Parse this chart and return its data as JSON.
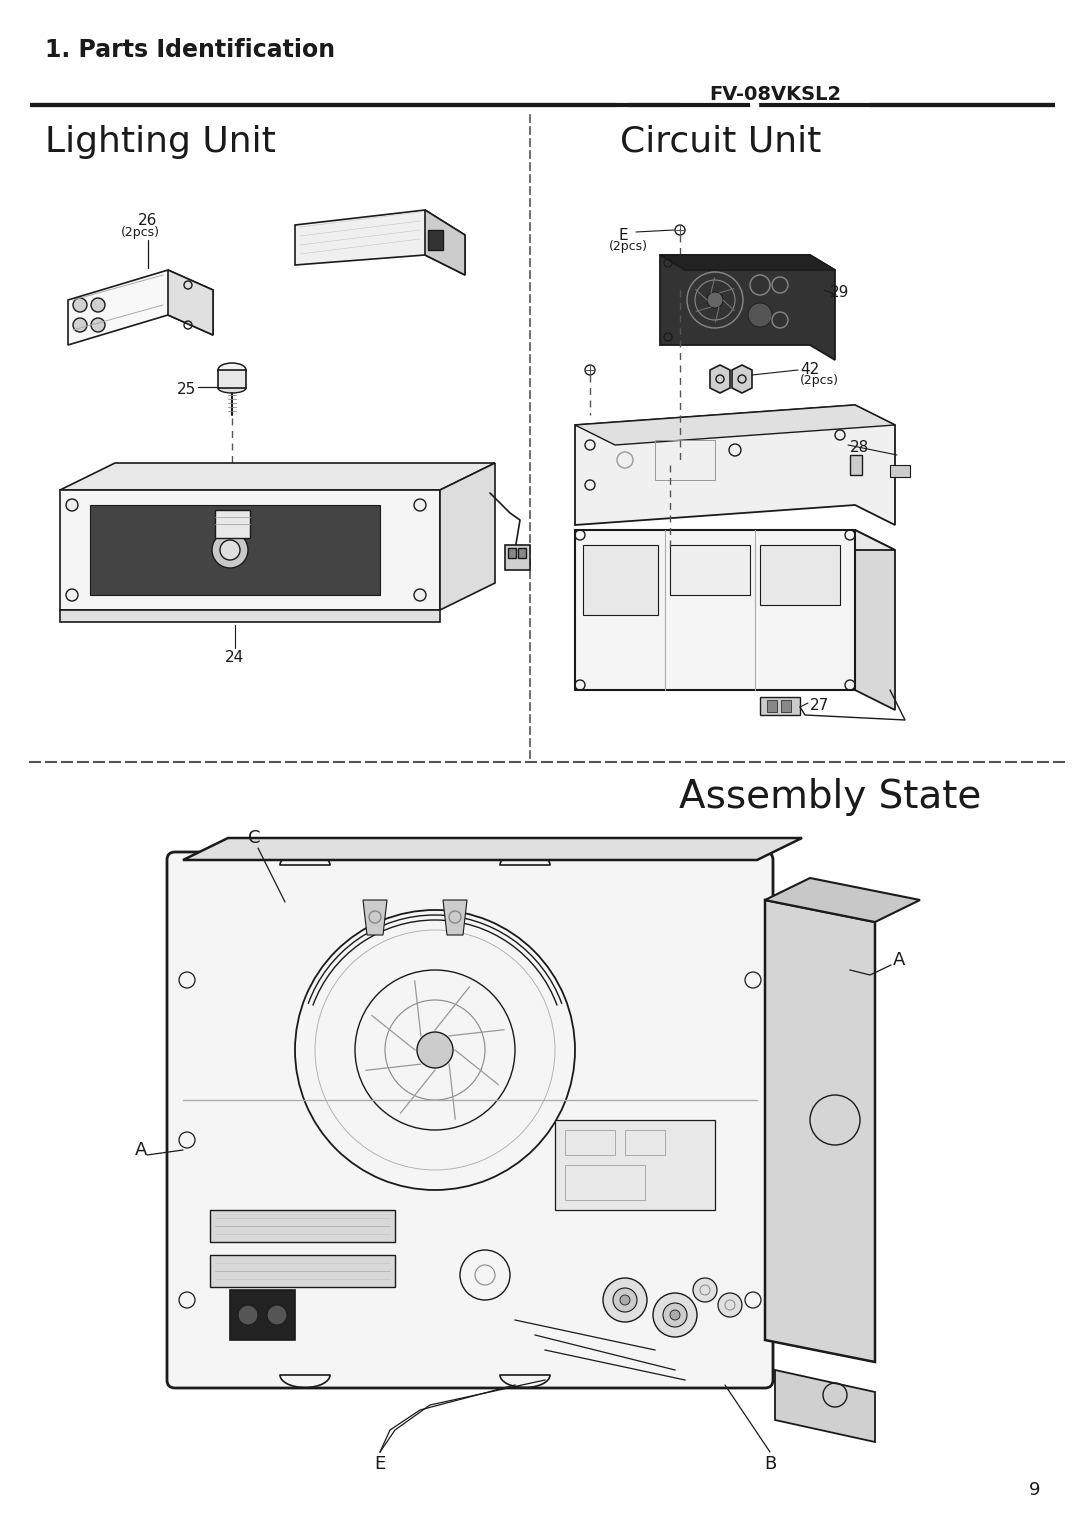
{
  "page_title": "1. Parts Identification",
  "model_name": "FV-08VKSL2",
  "section1_title": "Lighting Unit",
  "section2_title": "Circuit Unit",
  "section3_title": "Assembly State",
  "page_number": "9",
  "bg_color": "#ffffff",
  "line_color": "#1a1a1a",
  "text_color": "#1a1a1a"
}
